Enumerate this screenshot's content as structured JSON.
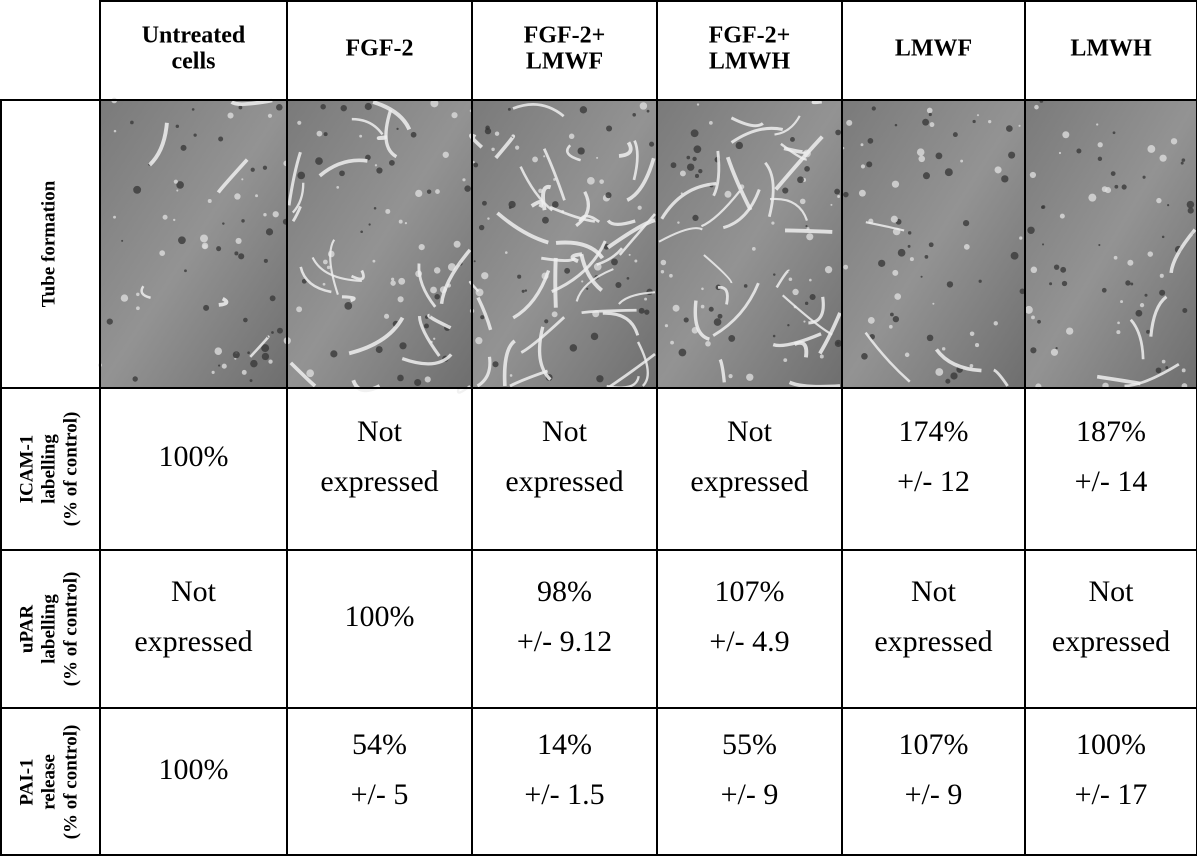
{
  "columns": [
    [
      "Untreated",
      "cells"
    ],
    [
      "FGF-2"
    ],
    [
      "FGF-2+",
      "LMWF"
    ],
    [
      "FGF-2+",
      "LMWH"
    ],
    [
      "LMWF"
    ],
    [
      "LMWH"
    ]
  ],
  "rows": [
    {
      "label": [
        "Tube formation"
      ]
    },
    {
      "label": [
        "ICAM-1",
        "labelling",
        "(% of control)"
      ],
      "cells": [
        [
          "100%"
        ],
        [
          "Not",
          "expressed"
        ],
        [
          "Not",
          "expressed"
        ],
        [
          "Not",
          "expressed"
        ],
        [
          "174%",
          "+/- 12"
        ],
        [
          "187%",
          "+/- 14"
        ]
      ]
    },
    {
      "label": [
        "uPAR",
        "labelling",
        "(% of control)"
      ],
      "cells": [
        [
          "Not",
          "expressed"
        ],
        [
          "100%"
        ],
        [
          "98%",
          "+/- 9.12"
        ],
        [
          "107%",
          "+/- 4.9"
        ],
        [
          "Not",
          "expressed"
        ],
        [
          "Not",
          "expressed"
        ]
      ]
    },
    {
      "label": [
        "PAI-1",
        "release",
        "(% of control)"
      ],
      "cells": [
        [
          "100%"
        ],
        [
          "54%",
          "+/- 5"
        ],
        [
          "14%",
          "+/- 1.5"
        ],
        [
          "55%",
          "+/- 9"
        ],
        [
          "107%",
          "+/- 9"
        ],
        [
          "100%",
          "+/- 17"
        ]
      ]
    }
  ]
}
